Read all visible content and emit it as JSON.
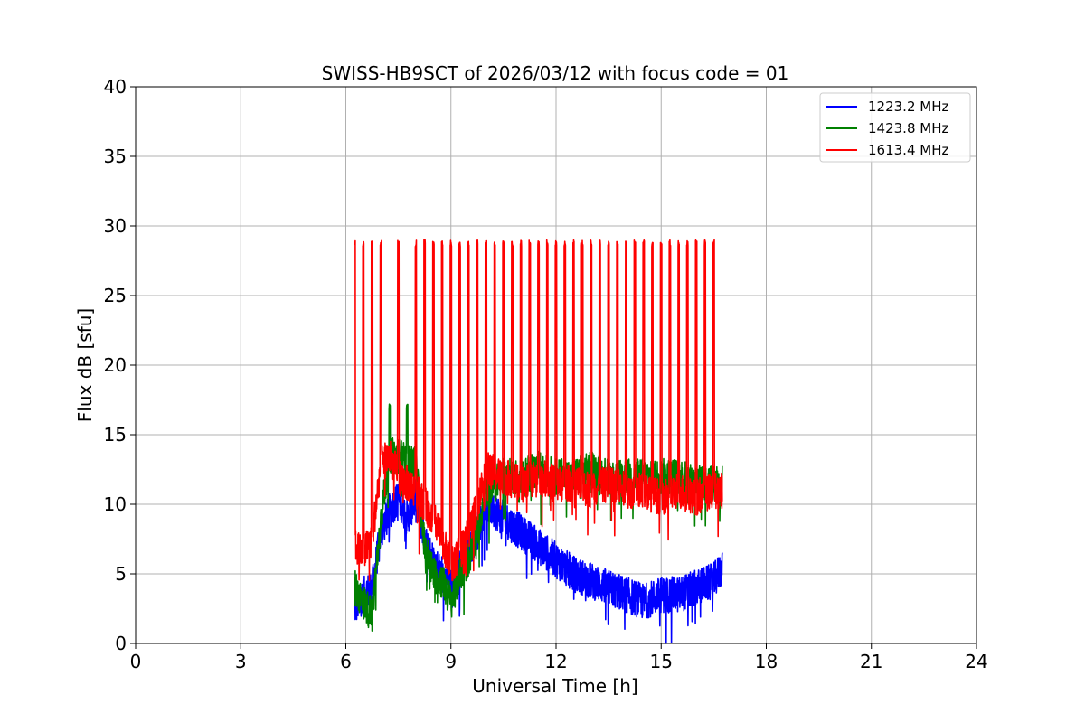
{
  "chart_data": {
    "type": "line",
    "title": "SWISS-HB9SCT of 2026/03/12 with focus code = 01",
    "xlabel": "Universal Time [h]",
    "ylabel": "Flux dB [sfu]",
    "xlim": [
      0,
      24
    ],
    "ylim": [
      0,
      40
    ],
    "xticks": [
      "0",
      "3",
      "6",
      "9",
      "12",
      "15",
      "18",
      "21",
      "24"
    ],
    "yticks": [
      "0",
      "5",
      "10",
      "15",
      "20",
      "25",
      "30",
      "35",
      "40"
    ],
    "grid": true,
    "legend_position": "top-right",
    "x_range_observed": [
      6.25,
      16.75
    ],
    "calibration_peaks_h": [
      6.25,
      6.5,
      6.75,
      7.0,
      7.5,
      8.0,
      8.25,
      8.5,
      8.75,
      9.0,
      9.25,
      9.5,
      9.75,
      10.0,
      10.25,
      10.5,
      10.75,
      11.0,
      11.25,
      11.5,
      11.75,
      12.0,
      12.25,
      12.5,
      12.75,
      13.0,
      13.25,
      13.5,
      13.75,
      14.0,
      14.25,
      14.5,
      14.75,
      15.0,
      15.25,
      15.5,
      15.75,
      16.0,
      16.25,
      16.5
    ],
    "series": [
      {
        "name": "1223.2 MHz",
        "color": "#0000ff",
        "x": [
          6.25,
          6.5,
          6.75,
          7.0,
          7.25,
          7.5,
          7.75,
          8.0,
          8.25,
          8.5,
          8.75,
          9.0,
          9.25,
          9.5,
          9.75,
          10.0,
          10.5,
          11.0,
          11.5,
          12.0,
          12.5,
          13.0,
          13.5,
          14.0,
          14.5,
          15.0,
          15.5,
          16.0,
          16.5,
          16.75
        ],
        "values": [
          2.5,
          3.5,
          4.0,
          8.0,
          9.5,
          10.5,
          9.0,
          10.5,
          7.5,
          6.0,
          5.0,
          4.0,
          5.5,
          6.5,
          8.0,
          10.0,
          9.0,
          8.0,
          7.0,
          6.0,
          5.0,
          4.5,
          4.0,
          3.5,
          3.0,
          3.5,
          3.5,
          4.0,
          4.5,
          5.5
        ],
        "peaks": [],
        "peak_height": 0
      },
      {
        "name": "1423.8 MHz",
        "color": "#008000",
        "x": [
          6.25,
          6.5,
          6.75,
          7.0,
          7.25,
          7.5,
          7.75,
          8.0,
          8.25,
          8.5,
          8.75,
          9.0,
          9.25,
          9.5,
          9.75,
          10.0,
          10.5,
          11.0,
          11.5,
          12.0,
          12.5,
          13.0,
          13.5,
          14.0,
          14.5,
          15.0,
          15.5,
          16.0,
          16.5,
          16.75
        ],
        "values": [
          4.0,
          3.0,
          2.0,
          9.0,
          13.5,
          13.5,
          13.0,
          13.0,
          7.0,
          5.0,
          4.5,
          3.0,
          5.0,
          6.0,
          8.0,
          11.0,
          12.0,
          12.0,
          12.5,
          12.0,
          12.0,
          12.5,
          12.0,
          12.0,
          12.0,
          12.0,
          12.0,
          11.5,
          11.5,
          11.5
        ],
        "peaks": [
          7.25,
          7.75
        ],
        "peak_height": 17.3
      },
      {
        "name": "1613.4 MHz",
        "color": "#ff0000",
        "x": [
          6.25,
          6.5,
          6.75,
          7.0,
          7.25,
          7.5,
          7.75,
          8.0,
          8.25,
          8.5,
          8.75,
          9.0,
          9.25,
          9.5,
          9.75,
          10.0,
          10.5,
          11.0,
          11.5,
          12.0,
          12.5,
          13.0,
          13.5,
          14.0,
          14.5,
          15.0,
          15.5,
          16.0,
          16.5,
          16.75
        ],
        "values": [
          7.0,
          6.5,
          7.5,
          13.0,
          13.5,
          12.0,
          11.5,
          11.0,
          10.0,
          9.0,
          7.5,
          5.5,
          6.5,
          8.0,
          10.0,
          12.5,
          12.0,
          11.5,
          12.0,
          11.5,
          11.5,
          11.0,
          11.5,
          11.0,
          11.0,
          10.5,
          11.0,
          10.5,
          11.0,
          11.0
        ],
        "peaks": [
          6.25,
          6.5,
          6.75,
          7.0,
          7.5,
          8.0,
          8.25,
          8.5,
          8.75,
          9.0,
          9.25,
          9.5,
          9.75,
          10.0,
          10.25,
          10.5,
          10.75,
          11.0,
          11.25,
          11.5,
          11.75,
          12.0,
          12.25,
          12.5,
          12.75,
          13.0,
          13.25,
          13.5,
          13.75,
          14.0,
          14.25,
          14.5,
          14.75,
          15.0,
          15.25,
          15.5,
          15.75,
          16.0,
          16.25,
          16.5
        ],
        "peak_height": 29.0
      }
    ]
  }
}
